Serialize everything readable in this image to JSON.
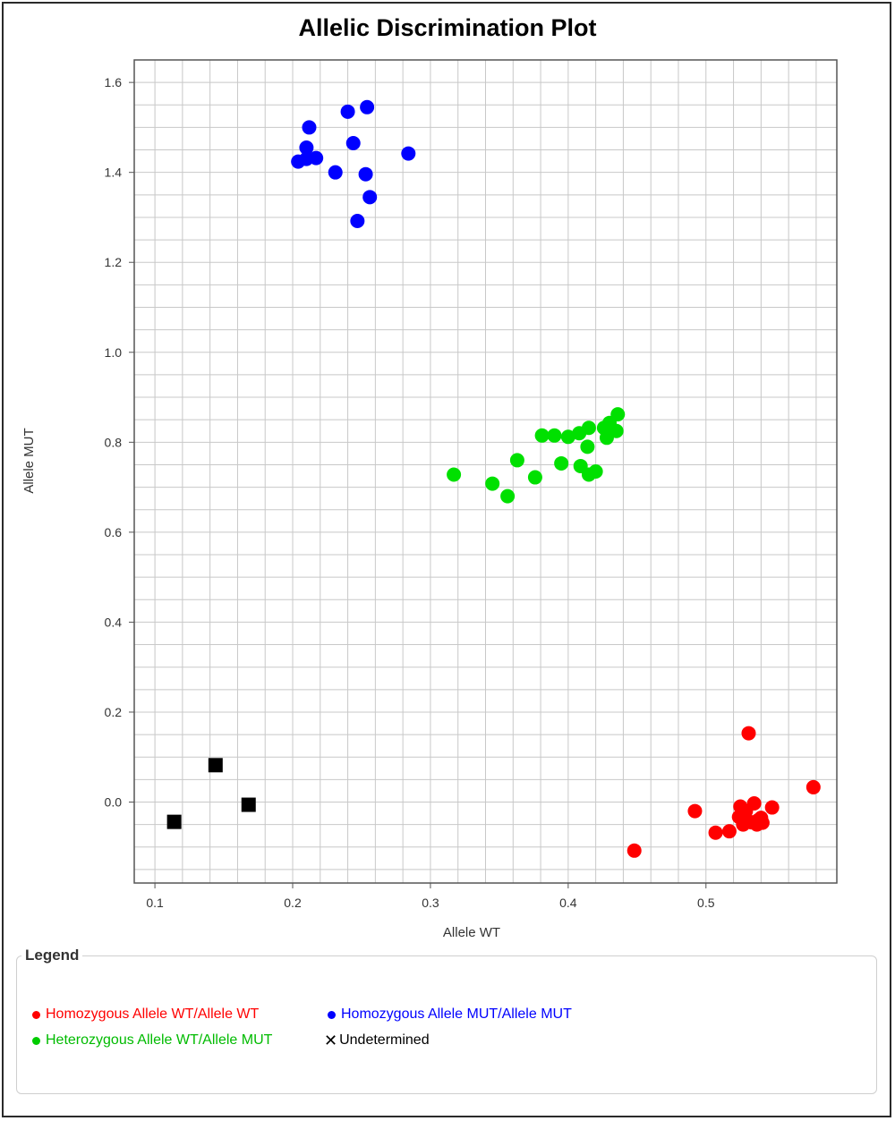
{
  "chart_data": {
    "type": "scatter",
    "title": "Allelic Discrimination Plot",
    "xlabel": "Allele WT",
    "ylabel": "Allele MUT",
    "xlim": [
      0.085,
      0.595
    ],
    "ylim": [
      -0.18,
      1.65
    ],
    "x_ticks": [
      0.1,
      0.2,
      0.3,
      0.4,
      0.5
    ],
    "x_tick_labels": [
      "0.1",
      "0.2",
      "0.3",
      "0.4",
      "0.5"
    ],
    "y_ticks": [
      0.0,
      0.2,
      0.4,
      0.6,
      0.8,
      1.0,
      1.2,
      1.4,
      1.6
    ],
    "y_tick_labels": [
      "0.0",
      "0.2",
      "0.4",
      "0.6",
      "0.8",
      "1.0",
      "1.2",
      "1.4",
      "1.6"
    ],
    "grid": true,
    "legend_position": "bottom",
    "series": [
      {
        "name": "Homozygous Allele WT/Allele WT",
        "color": "#ff0000",
        "marker": "circle",
        "points": [
          [
            0.531,
            0.153
          ],
          [
            0.578,
            0.033
          ],
          [
            0.492,
            -0.02
          ],
          [
            0.548,
            -0.012
          ],
          [
            0.525,
            -0.01
          ],
          [
            0.535,
            -0.003
          ],
          [
            0.529,
            -0.02
          ],
          [
            0.524,
            -0.033
          ],
          [
            0.538,
            -0.04
          ],
          [
            0.54,
            -0.035
          ],
          [
            0.533,
            -0.045
          ],
          [
            0.527,
            -0.05
          ],
          [
            0.537,
            -0.05
          ],
          [
            0.541,
            -0.046
          ],
          [
            0.517,
            -0.065
          ],
          [
            0.507,
            -0.068
          ],
          [
            0.448,
            -0.108
          ]
        ]
      },
      {
        "name": "Homozygous Allele MUT/Allele MUT",
        "color": "#0000ff",
        "marker": "circle",
        "points": [
          [
            0.254,
            1.545
          ],
          [
            0.24,
            1.535
          ],
          [
            0.212,
            1.5
          ],
          [
            0.244,
            1.465
          ],
          [
            0.21,
            1.455
          ],
          [
            0.284,
            1.442
          ],
          [
            0.217,
            1.432
          ],
          [
            0.21,
            1.43
          ],
          [
            0.204,
            1.424
          ],
          [
            0.231,
            1.4
          ],
          [
            0.253,
            1.396
          ],
          [
            0.256,
            1.345
          ],
          [
            0.247,
            1.292
          ]
        ]
      },
      {
        "name": "Heterozygous Allele WT/Allele MUT",
        "color": "#00e000",
        "marker": "circle",
        "points": [
          [
            0.436,
            0.862
          ],
          [
            0.43,
            0.843
          ],
          [
            0.426,
            0.832
          ],
          [
            0.415,
            0.832
          ],
          [
            0.435,
            0.825
          ],
          [
            0.408,
            0.82
          ],
          [
            0.381,
            0.815
          ],
          [
            0.39,
            0.815
          ],
          [
            0.4,
            0.812
          ],
          [
            0.428,
            0.81
          ],
          [
            0.414,
            0.79
          ],
          [
            0.363,
            0.76
          ],
          [
            0.395,
            0.753
          ],
          [
            0.409,
            0.747
          ],
          [
            0.42,
            0.735
          ],
          [
            0.415,
            0.728
          ],
          [
            0.317,
            0.728
          ],
          [
            0.376,
            0.722
          ],
          [
            0.345,
            0.708
          ],
          [
            0.356,
            0.68
          ]
        ]
      },
      {
        "name": "Undetermined",
        "color": "#000000",
        "marker": "square",
        "points": [
          [
            0.144,
            0.082
          ],
          [
            0.168,
            -0.006
          ],
          [
            0.114,
            -0.044
          ]
        ]
      }
    ]
  },
  "legend": {
    "title": "Legend",
    "items": [
      {
        "label": "Homozygous Allele WT/Allele WT",
        "color": "#ff0000",
        "symbol": "dot"
      },
      {
        "label": "Homozygous Allele MUT/Allele MUT",
        "color": "#0000ff",
        "symbol": "dot"
      },
      {
        "label": "Heterozygous Allele WT/Allele MUT",
        "color": "#00cc00",
        "symbol": "dot"
      },
      {
        "label": "Undetermined",
        "color": "#000000",
        "symbol": "x"
      }
    ]
  }
}
